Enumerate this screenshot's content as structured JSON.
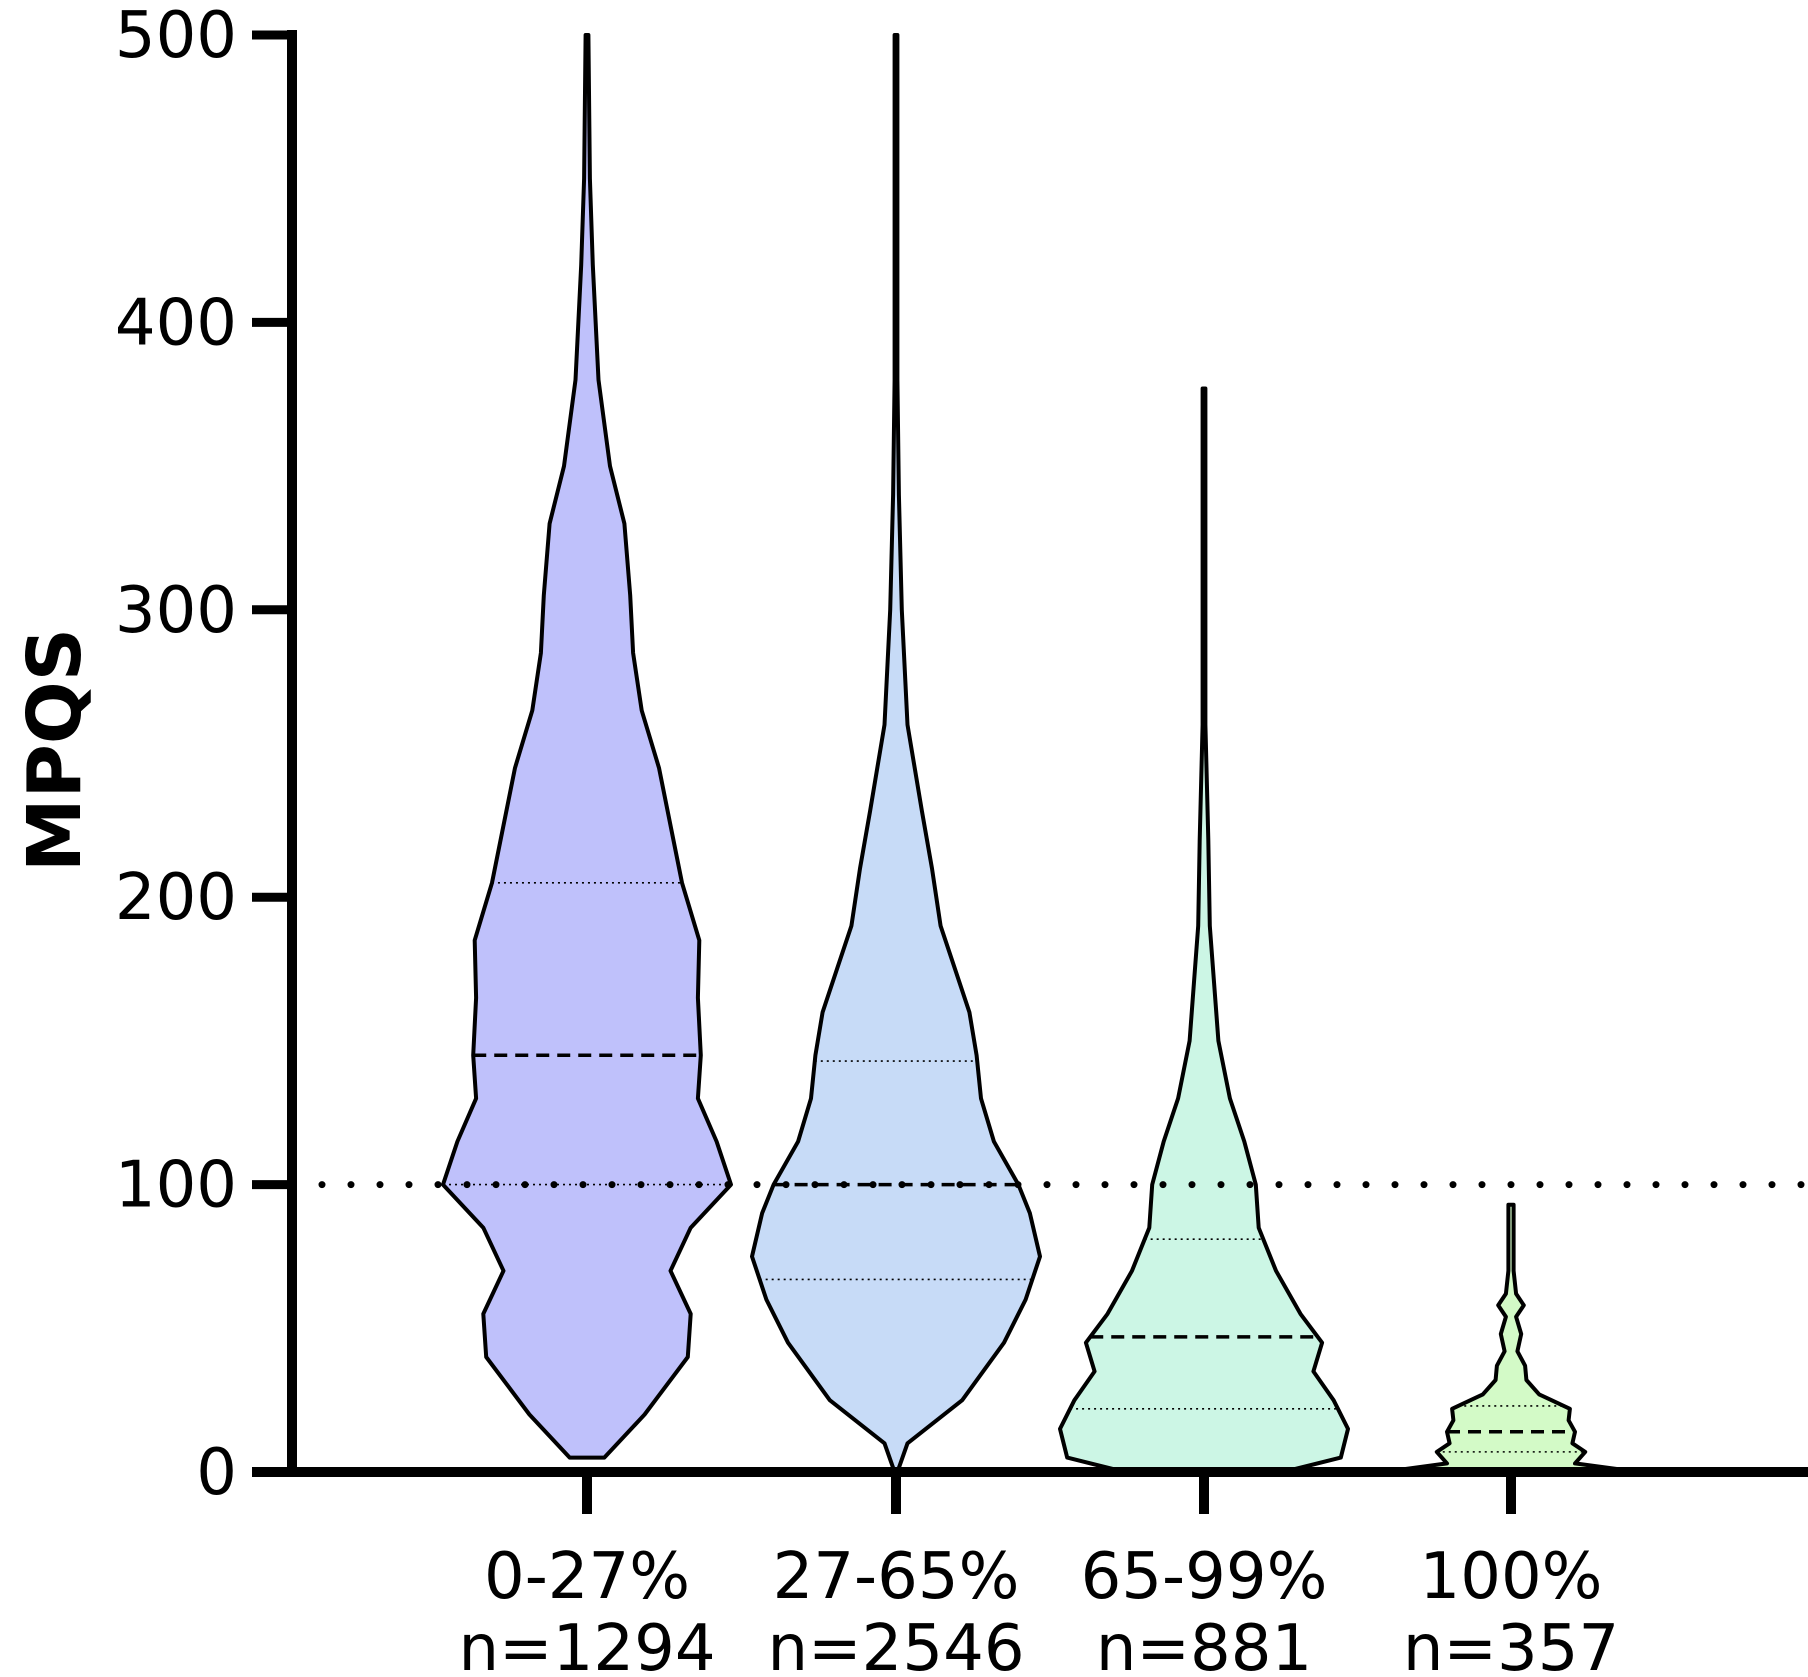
{
  "chart_data": {
    "type": "violin",
    "ylabel": "MPQS",
    "ylim": [
      0,
      500
    ],
    "yticks": [
      "0",
      "100",
      "200",
      "300",
      "400",
      "500"
    ],
    "grid": false,
    "reference_line": {
      "y": 100,
      "style": "dotted"
    },
    "categories": [
      "0-27%",
      "27-65%",
      "65-99%",
      "100%"
    ],
    "category_counts": [
      "n=1294",
      "n=2546",
      "n=881",
      "n=357"
    ],
    "series": [
      {
        "category": "0-27%",
        "color": "#bfc1fb",
        "min": 5,
        "max": 500,
        "median": 145,
        "q1": 100,
        "q3": 205,
        "density": [
          [
            5,
            0.12
          ],
          [
            20,
            0.4
          ],
          [
            40,
            0.7
          ],
          [
            55,
            0.72
          ],
          [
            70,
            0.58
          ],
          [
            85,
            0.72
          ],
          [
            100,
            1.0
          ],
          [
            115,
            0.9
          ],
          [
            130,
            0.77
          ],
          [
            145,
            0.79
          ],
          [
            165,
            0.77
          ],
          [
            185,
            0.78
          ],
          [
            205,
            0.66
          ],
          [
            225,
            0.58
          ],
          [
            245,
            0.5
          ],
          [
            265,
            0.38
          ],
          [
            285,
            0.32
          ],
          [
            305,
            0.3
          ],
          [
            330,
            0.26
          ],
          [
            350,
            0.16
          ],
          [
            380,
            0.08
          ],
          [
            420,
            0.04
          ],
          [
            450,
            0.02
          ],
          [
            500,
            0.01
          ]
        ]
      },
      {
        "category": "27-65%",
        "color": "#c7dbf7",
        "min": 0,
        "max": 500,
        "median": 100,
        "q1": 67,
        "q3": 143,
        "density": [
          [
            0,
            0.01
          ],
          [
            10,
            0.08
          ],
          [
            25,
            0.46
          ],
          [
            45,
            0.75
          ],
          [
            60,
            0.9
          ],
          [
            75,
            1.0
          ],
          [
            90,
            0.93
          ],
          [
            100,
            0.85
          ],
          [
            115,
            0.68
          ],
          [
            130,
            0.59
          ],
          [
            145,
            0.56
          ],
          [
            160,
            0.51
          ],
          [
            175,
            0.41
          ],
          [
            190,
            0.31
          ],
          [
            210,
            0.25
          ],
          [
            230,
            0.18
          ],
          [
            260,
            0.08
          ],
          [
            300,
            0.04
          ],
          [
            340,
            0.02
          ],
          [
            380,
            0.01
          ],
          [
            500,
            0.01
          ]
        ]
      },
      {
        "category": "65-99%",
        "color": "#ccf6e5",
        "min": 0,
        "max": 377,
        "median": 47,
        "q1": 22,
        "q3": 81,
        "density": [
          [
            0,
            0.55
          ],
          [
            5,
            0.95
          ],
          [
            15,
            1.0
          ],
          [
            25,
            0.9
          ],
          [
            35,
            0.76
          ],
          [
            45,
            0.82
          ],
          [
            55,
            0.67
          ],
          [
            70,
            0.5
          ],
          [
            85,
            0.38
          ],
          [
            100,
            0.36
          ],
          [
            115,
            0.28
          ],
          [
            130,
            0.18
          ],
          [
            150,
            0.1
          ],
          [
            170,
            0.07
          ],
          [
            190,
            0.04
          ],
          [
            220,
            0.03
          ],
          [
            260,
            0.01
          ],
          [
            377,
            0.01
          ]
        ]
      },
      {
        "category": "100%",
        "color": "#d3fac7",
        "min": 0,
        "max": 93,
        "median": 14,
        "q1": 7,
        "q3": 23,
        "density": [
          [
            0,
            1.0
          ],
          [
            3,
            0.5
          ],
          [
            7,
            0.58
          ],
          [
            10,
            0.48
          ],
          [
            14,
            0.5
          ],
          [
            18,
            0.45
          ],
          [
            22,
            0.46
          ],
          [
            27,
            0.22
          ],
          [
            32,
            0.12
          ],
          [
            37,
            0.11
          ],
          [
            42,
            0.05
          ],
          [
            48,
            0.08
          ],
          [
            54,
            0.04
          ],
          [
            58,
            0.1
          ],
          [
            62,
            0.04
          ],
          [
            70,
            0.02
          ],
          [
            85,
            0.02
          ],
          [
            93,
            0.02
          ]
        ]
      }
    ]
  }
}
